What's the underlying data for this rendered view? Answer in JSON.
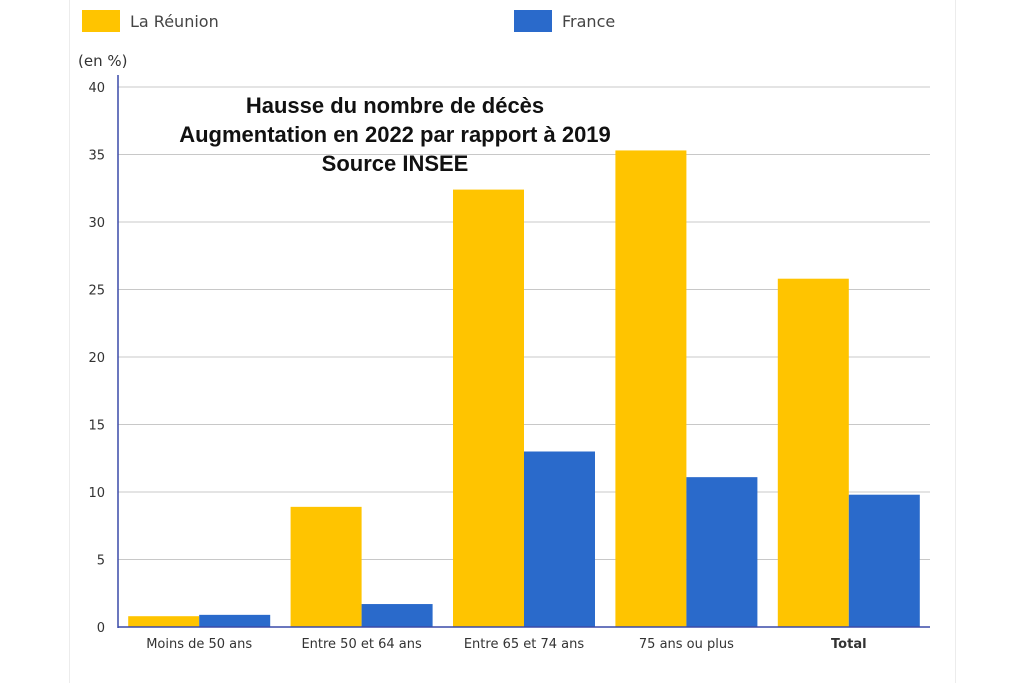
{
  "unit_label": "(en %)",
  "legend": [
    {
      "label": "La Réunion",
      "color": "#FFC400"
    },
    {
      "label": "France",
      "color": "#2A6ACB"
    }
  ],
  "title_lines": [
    "Hausse du nombre de décès",
    "Augmentation en 2022 par rapport à 2019",
    "Source INSEE"
  ],
  "chart_data": {
    "type": "bar",
    "title": "Hausse du nombre de décès Augmentation en 2022 par rapport à 2019 Source INSEE",
    "ylabel": "(en %)",
    "xlabel": "",
    "ylim": [
      0,
      40
    ],
    "yticks": [
      0,
      5,
      10,
      15,
      20,
      25,
      30,
      35,
      40
    ],
    "categories": [
      "Moins de 50 ans",
      "Entre 50 et 64 ans",
      "Entre 65 et 74 ans",
      "75 ans ou plus",
      "Total"
    ],
    "bold_categories": [
      "Total"
    ],
    "series": [
      {
        "name": "La Réunion",
        "color": "#FFC400",
        "values": [
          0.8,
          8.9,
          32.4,
          35.3,
          25.8
        ]
      },
      {
        "name": "France",
        "color": "#2A6ACB",
        "values": [
          0.9,
          1.7,
          13.0,
          11.1,
          9.8
        ]
      }
    ],
    "grid": true,
    "legend_position": "top"
  }
}
